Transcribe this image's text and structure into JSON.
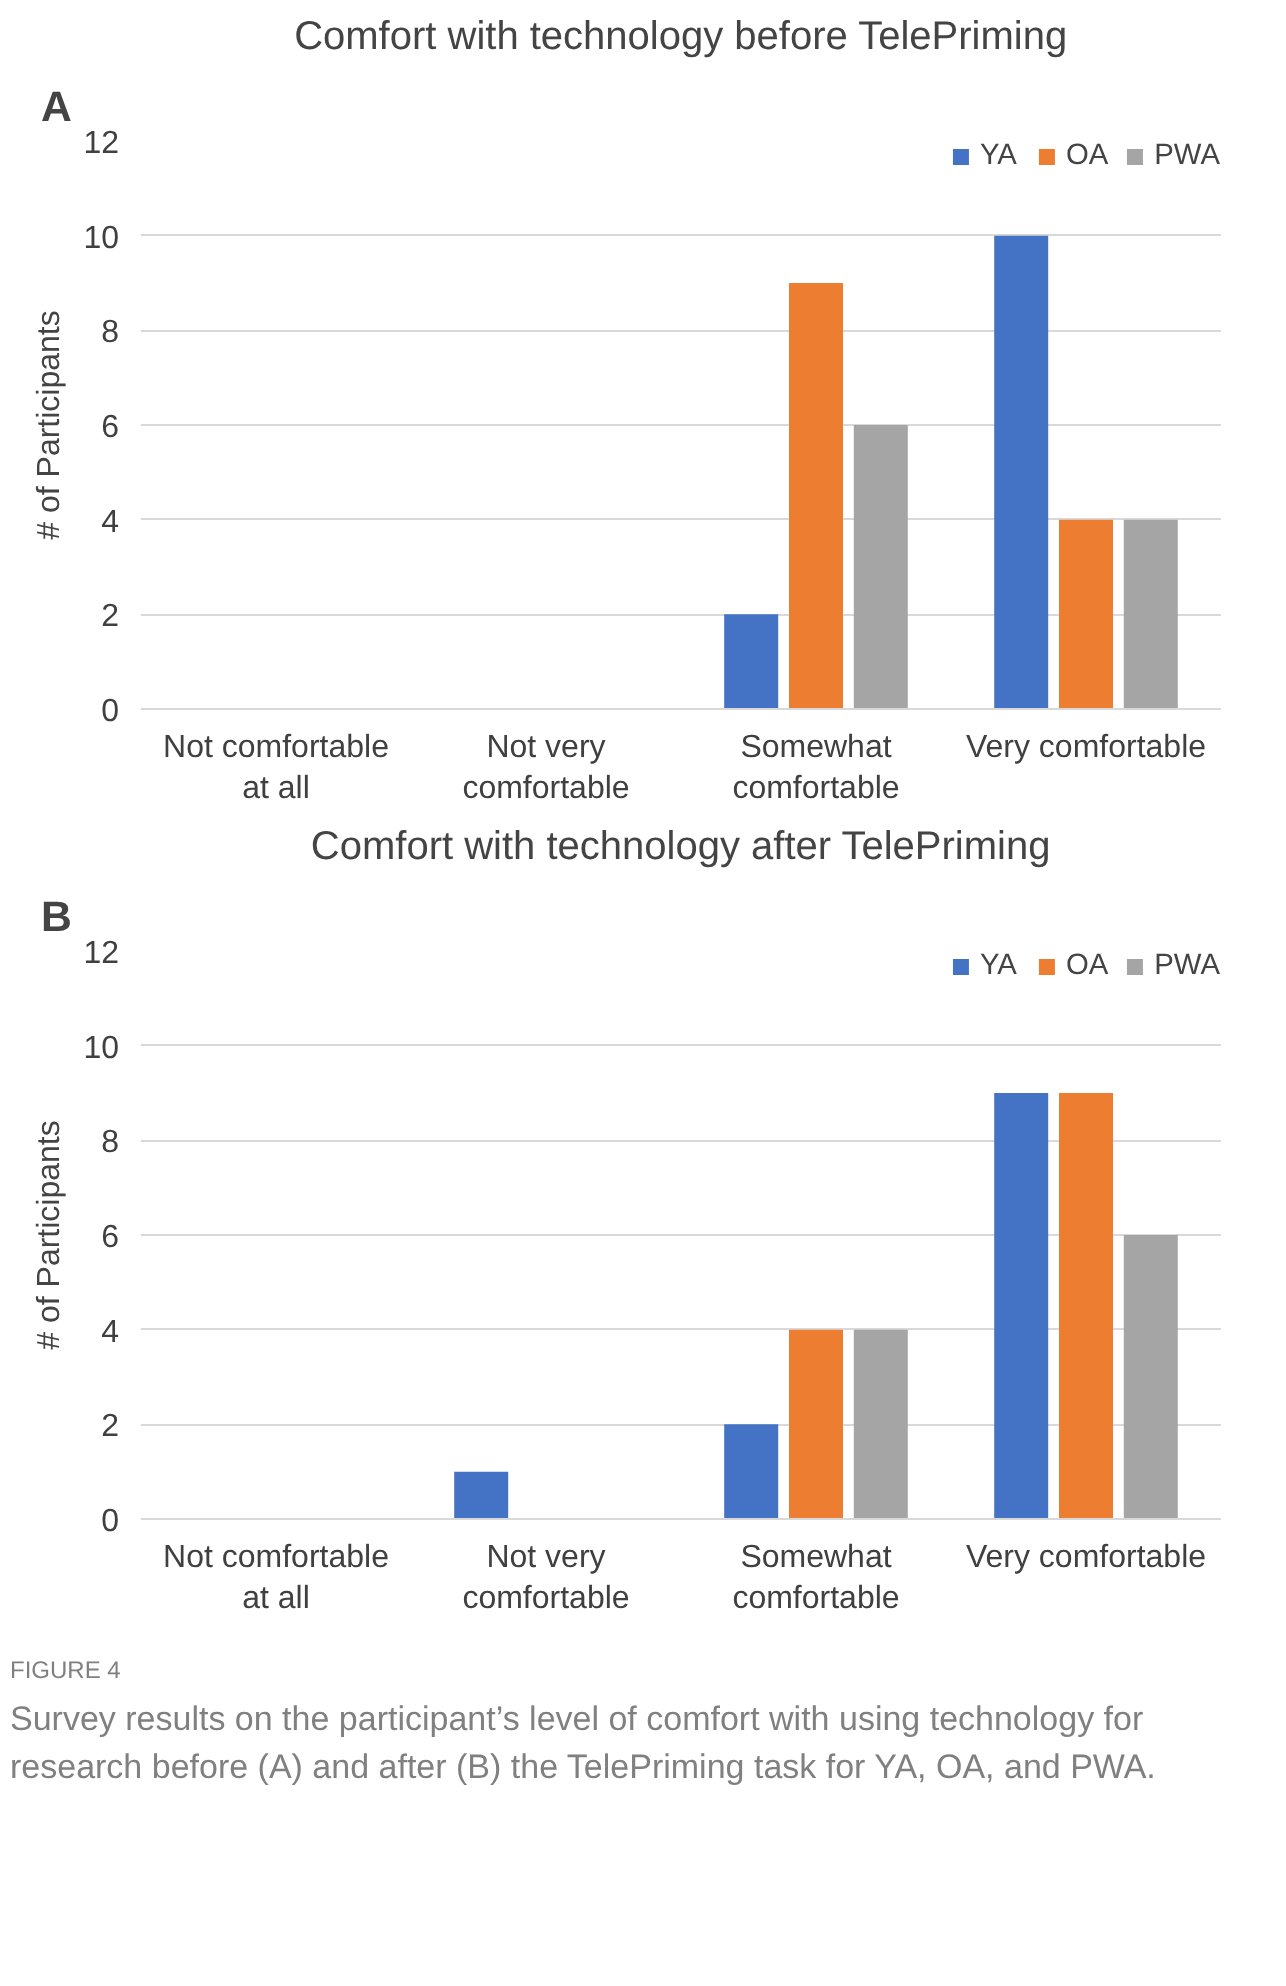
{
  "chart_data": [
    {
      "type": "bar",
      "title": "Comfort with technology before TelePriming",
      "ylabel": "# of Participants",
      "categories": [
        "Not comfortable at all",
        "Not very comfortable",
        "Somewhat comfortable",
        "Very comfortable"
      ],
      "series": [
        {
          "name": "YA",
          "color": "#4472c4",
          "values": [
            0,
            0,
            2,
            10
          ]
        },
        {
          "name": "OA",
          "color": "#ed7d31",
          "values": [
            0,
            0,
            9,
            4
          ]
        },
        {
          "name": "PWA",
          "color": "#a5a5a5",
          "values": [
            0,
            0,
            6,
            4
          ]
        }
      ],
      "ylim": [
        0,
        12
      ],
      "yticks": [
        0,
        2,
        4,
        6,
        8,
        10,
        12
      ],
      "grid": "y",
      "legend": "top right",
      "annotations": [
        "A"
      ]
    },
    {
      "type": "bar",
      "title": "Comfort with technology after TelePriming",
      "ylabel": "# of Participants",
      "categories": [
        "Not comfortable at all",
        "Not very comfortable",
        "Somewhat comfortable",
        "Very comfortable"
      ],
      "series": [
        {
          "name": "YA",
          "color": "#4472c4",
          "values": [
            0,
            1,
            2,
            9
          ]
        },
        {
          "name": "OA",
          "color": "#ed7d31",
          "values": [
            0,
            0,
            4,
            9
          ]
        },
        {
          "name": "PWA",
          "color": "#a5a5a5",
          "values": [
            0,
            0,
            4,
            6
          ]
        }
      ],
      "ylim": [
        0,
        12
      ],
      "yticks": [
        0,
        2,
        4,
        6,
        8,
        10,
        12
      ],
      "grid": "y",
      "legend": "top right",
      "annotations": [
        "B",
        "FIGURE 4",
        "Survey results on the participant’s level of comfort with using technology for research before (A) and after (B) the TelePriming task for YA, OA, and PWA."
      ]
    }
  ]
}
